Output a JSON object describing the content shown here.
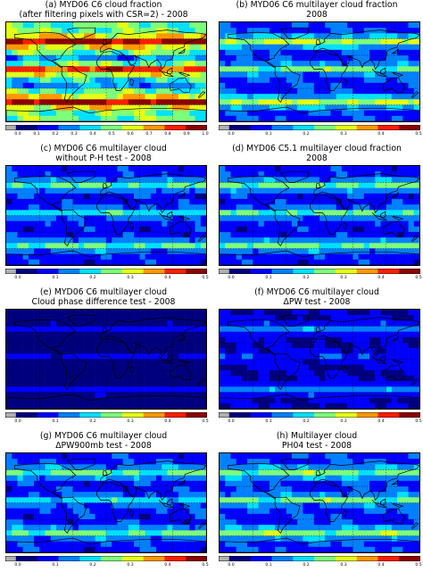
{
  "panels": [
    {
      "id": "a",
      "title1": "(a) MYD06 C6 cloud fraction",
      "title2": "(after filtering pixels with CSR=2) - 2008",
      "ticks": [
        "0.0",
        "0.1",
        "0.2",
        "0.3",
        "0.4",
        "0.5",
        "0.6",
        "0.7",
        "0.8",
        "0.9",
        "1.0"
      ],
      "scale": "full"
    },
    {
      "id": "b",
      "title1": "(b) MYD06 C6 multilayer cloud fraction",
      "title2": "2008",
      "ticks": [
        "0.0",
        "0.1",
        "0.2",
        "0.3",
        "0.4",
        "0.5"
      ],
      "scale": "half"
    },
    {
      "id": "c",
      "title1": "(c) MYD06 C6 multilayer cloud",
      "title2": "without P-H test - 2008",
      "ticks": [
        "0.0",
        "0.1",
        "0.2",
        "0.3",
        "0.4",
        "0.5"
      ],
      "scale": "half"
    },
    {
      "id": "d",
      "title1": "(d) MYD06 C5.1 multilayer cloud fraction",
      "title2": "2008",
      "ticks": [
        "0.0",
        "0.1",
        "0.2",
        "0.3",
        "0.4",
        "0.5"
      ],
      "scale": "half"
    },
    {
      "id": "e",
      "title1": "(e) MYD06 C6 multilayer cloud",
      "title2": "Cloud phase difference test - 2008",
      "ticks": [
        "0.0",
        "0.1",
        "0.2",
        "0.3",
        "0.4",
        "0.5"
      ],
      "scale": "half"
    },
    {
      "id": "f",
      "title1": "(f) MYD06 C6 multilayer cloud",
      "title2": "ΔPW test - 2008",
      "ticks": [
        "0.0",
        "0.1",
        "0.2",
        "0.3",
        "0.4",
        "0.5"
      ],
      "scale": "half"
    },
    {
      "id": "g",
      "title1": "(g) MYD06 C6 multilayer cloud",
      "title2": "ΔPW900mb test - 2008",
      "ticks": [
        "0.0",
        "0.1",
        "0.2",
        "0.3",
        "0.4",
        "0.5"
      ],
      "scale": "half"
    },
    {
      "id": "h",
      "title1": "(h) Multilayer cloud",
      "title2": "PH04 test - 2008",
      "ticks": [
        "0.0",
        "0.1",
        "0.2",
        "0.3",
        "0.4",
        "0.5"
      ],
      "scale": "half"
    }
  ],
  "colormap": [
    "#00007f",
    "#0000ff",
    "#0080ff",
    "#00e0ff",
    "#7dff7a",
    "#e4ff13",
    "#ff9800",
    "#ff1e00",
    "#8b0000"
  ],
  "colors": {
    "missing": "#b0b0b0",
    "coast": "#000000"
  }
}
